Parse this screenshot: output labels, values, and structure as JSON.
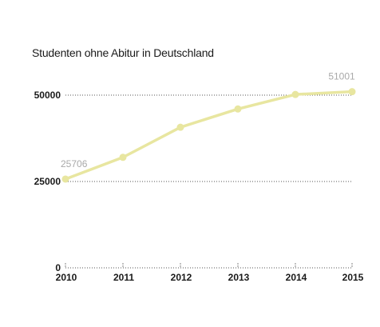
{
  "chart_data": {
    "type": "line",
    "title": "Studenten ohne Abitur in Deutschland",
    "x": [
      "2010",
      "2011",
      "2012",
      "2013",
      "2014",
      "2015"
    ],
    "series": [
      {
        "values": [
          25706,
          32000,
          40700,
          46000,
          50200,
          51001
        ]
      }
    ],
    "data_labels": [
      {
        "x": "2010",
        "text": "25706"
      },
      {
        "x": "2015",
        "text": "51001"
      }
    ],
    "y_ticks": [
      {
        "value": 0,
        "label": "0"
      },
      {
        "value": 25000,
        "label": "25000"
      },
      {
        "value": 50000,
        "label": "50000"
      }
    ],
    "ylim": [
      0,
      50000
    ],
    "grid": "horizontal-dotted",
    "line_color": "#e8e6a0",
    "text_color": "#1a1a1a",
    "label_color": "#a9a9a9"
  }
}
